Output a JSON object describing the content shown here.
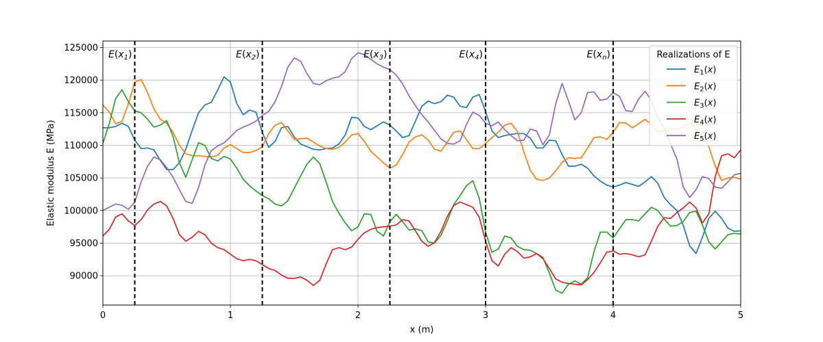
{
  "chart_data": {
    "type": "line",
    "xlabel": "x (m)",
    "ylabel": "Elastic modulus E (MPa)",
    "xlim": [
      0,
      5
    ],
    "ylim": [
      85500,
      126000
    ],
    "xticks": [
      0,
      1,
      2,
      3,
      4,
      5
    ],
    "yticks": [
      90000,
      95000,
      100000,
      105000,
      110000,
      115000,
      120000,
      125000
    ],
    "grid": true,
    "legend": {
      "title": "Realizations of E",
      "placement": "top-right"
    },
    "vlines": [
      {
        "x": 0.25,
        "label": "E(x1)"
      },
      {
        "x": 1.25,
        "label": "E(x2)"
      },
      {
        "x": 2.25,
        "label": "E(x3)"
      },
      {
        "x": 3.0,
        "label": "E(x4)"
      },
      {
        "x": 4.0,
        "label": "E(xn)"
      }
    ],
    "x": [
      0,
      0.05,
      0.1,
      0.15,
      0.2,
      0.25,
      0.3,
      0.35,
      0.4,
      0.45,
      0.5,
      0.55,
      0.6,
      0.65,
      0.7,
      0.75,
      0.8,
      0.85,
      0.9,
      0.95,
      1.0,
      1.05,
      1.1,
      1.15,
      1.2,
      1.25,
      1.3,
      1.35,
      1.4,
      1.45,
      1.5,
      1.55,
      1.6,
      1.65,
      1.7,
      1.75,
      1.8,
      1.85,
      1.9,
      1.95,
      2.0,
      2.05,
      2.1,
      2.15,
      2.2,
      2.25,
      2.3,
      2.35,
      2.4,
      2.45,
      2.5,
      2.55,
      2.6,
      2.65,
      2.7,
      2.75,
      2.8,
      2.85,
      2.9,
      2.95,
      3.0,
      3.05,
      3.1,
      3.15,
      3.2,
      3.25,
      3.3,
      3.35,
      3.4,
      3.45,
      3.5,
      3.55,
      3.6,
      3.65,
      3.7,
      3.75,
      3.8,
      3.85,
      3.9,
      3.95,
      4.0,
      4.05,
      4.1,
      4.15,
      4.2,
      4.25,
      4.3,
      4.35,
      4.4,
      4.45,
      4.5,
      4.55,
      4.6,
      4.65,
      4.7,
      4.75,
      4.8,
      4.85,
      4.9,
      4.95,
      5.0
    ],
    "series": [
      {
        "name": "E1(x)",
        "color": "#1f77b4",
        "values": [
          112700,
          112700,
          112900,
          113400,
          112900,
          110800,
          109500,
          109600,
          109300,
          107700,
          106300,
          106300,
          107300,
          109400,
          112300,
          115000,
          116200,
          116600,
          118500,
          120500,
          119700,
          116400,
          114700,
          115400,
          115100,
          112000,
          109700,
          110600,
          112700,
          112900,
          111300,
          110200,
          109800,
          109400,
          109300,
          109500,
          109600,
          110200,
          111600,
          114300,
          114200,
          112900,
          112400,
          113000,
          113600,
          113100,
          112200,
          111200,
          111500,
          113700,
          116000,
          116800,
          116400,
          116700,
          117700,
          117400,
          116000,
          115800,
          117400,
          117800,
          115200,
          112200,
          111200,
          111500,
          111700,
          111800,
          111800,
          111100,
          109600,
          109600,
          110800,
          110700,
          108600,
          106800,
          106800,
          107100,
          106500,
          105300,
          104500,
          103900,
          103600,
          103900,
          104300,
          104000,
          103700,
          104400,
          105200,
          104200,
          102000,
          100900,
          100000,
          97700,
          94600,
          93400,
          95900,
          98800,
          99900,
          98800,
          97300,
          96800,
          96900
        ]
      },
      {
        "name": "E2(x)",
        "color": "#ff7f0e",
        "values": [
          116200,
          115100,
          113300,
          113700,
          116400,
          119700,
          120100,
          118100,
          115600,
          114000,
          113400,
          112000,
          110000,
          108700,
          108400,
          108400,
          108300,
          108200,
          108500,
          109600,
          110100,
          109500,
          108900,
          108900,
          109200,
          109800,
          111800,
          113100,
          113500,
          112200,
          110900,
          111000,
          111100,
          110500,
          109900,
          109500,
          109400,
          109700,
          110500,
          111600,
          111800,
          110600,
          109100,
          108200,
          107300,
          106500,
          107000,
          108600,
          110500,
          111300,
          111600,
          110800,
          109400,
          109100,
          110500,
          112000,
          112200,
          110900,
          109500,
          109500,
          110300,
          111200,
          112000,
          113100,
          113400,
          112100,
          109000,
          106200,
          104800,
          104600,
          105000,
          106100,
          107400,
          108100,
          108000,
          108100,
          109600,
          111200,
          111300,
          110900,
          112000,
          113500,
          113400,
          112700,
          113300,
          114000,
          113200,
          112100,
          112200,
          112600,
          112400,
          112800,
          113500,
          112700,
          111100,
          109800,
          106800,
          104600,
          105000,
          105100,
          104800
        ]
      },
      {
        "name": "E3(x)",
        "color": "#2ca02c",
        "values": [
          110300,
          113300,
          117200,
          118500,
          116700,
          115300,
          115000,
          114000,
          112800,
          113100,
          113800,
          111400,
          107300,
          105100,
          107800,
          110400,
          110000,
          108000,
          107600,
          108300,
          107900,
          106500,
          104800,
          103800,
          103000,
          102300,
          101800,
          101000,
          100700,
          101500,
          103400,
          105300,
          107100,
          108200,
          107200,
          104400,
          101400,
          99600,
          98100,
          96900,
          97500,
          99500,
          99400,
          96800,
          96100,
          98300,
          99400,
          98300,
          97000,
          97200,
          96900,
          95200,
          95000,
          96200,
          98400,
          100900,
          102300,
          103800,
          104600,
          101900,
          96700,
          93600,
          94100,
          96100,
          95800,
          94500,
          94000,
          93900,
          93400,
          92800,
          90400,
          87800,
          87300,
          88700,
          89200,
          88700,
          89700,
          93700,
          96700,
          96700,
          95800,
          97200,
          98600,
          98600,
          98400,
          99500,
          100500,
          100000,
          98700,
          97600,
          97700,
          98300,
          99700,
          99900,
          97800,
          95200,
          94100,
          95200,
          96300,
          96500,
          96400
        ]
      },
      {
        "name": "E4(x)",
        "color": "#d62728",
        "values": [
          96100,
          97100,
          99000,
          99500,
          98400,
          97700,
          98600,
          100100,
          101000,
          101400,
          100700,
          98800,
          96300,
          95300,
          95900,
          96800,
          96300,
          95000,
          94300,
          94000,
          93300,
          92600,
          92300,
          92500,
          92300,
          91700,
          91100,
          90800,
          90100,
          89600,
          89600,
          89800,
          89300,
          88500,
          89300,
          91800,
          94000,
          94300,
          94000,
          94400,
          95600,
          96600,
          97100,
          97400,
          97500,
          97600,
          97800,
          98600,
          98400,
          96900,
          95300,
          94500,
          95100,
          96800,
          99100,
          100800,
          101300,
          100900,
          100500,
          99000,
          95300,
          92300,
          91500,
          93300,
          94300,
          93700,
          92700,
          92900,
          93400,
          92600,
          91100,
          89500,
          89000,
          88800,
          88700,
          88600,
          89400,
          90500,
          92000,
          93600,
          93800,
          93300,
          93400,
          93200,
          92900,
          93200,
          95300,
          97600,
          98900,
          98800,
          99700,
          100400,
          101300,
          100400,
          98100,
          99500,
          105200,
          108400,
          108700,
          108100,
          109300
        ]
      },
      {
        "name": "E5(x)",
        "color": "#9467bd",
        "values": [
          100000,
          100500,
          101000,
          100800,
          100200,
          101300,
          104400,
          106800,
          108200,
          107800,
          106600,
          105100,
          103200,
          101400,
          101100,
          103500,
          107000,
          109200,
          109900,
          110400,
          111300,
          112300,
          112800,
          113200,
          113700,
          114600,
          115200,
          116700,
          119000,
          122000,
          123400,
          122900,
          121000,
          119500,
          119300,
          119900,
          120300,
          120500,
          121300,
          123300,
          124200,
          123900,
          123200,
          122500,
          122000,
          121600,
          120800,
          119400,
          117600,
          116100,
          114700,
          113600,
          112300,
          111000,
          110300,
          110200,
          110700,
          113200,
          115100,
          114600,
          113400,
          113000,
          113600,
          112400,
          111500,
          110700,
          110800,
          112500,
          112200,
          110100,
          111600,
          116400,
          119500,
          116800,
          113900,
          115000,
          118100,
          118200,
          116900,
          117100,
          118100,
          117500,
          115300,
          115200,
          117100,
          118300,
          116900,
          114200,
          112700,
          110200,
          107900,
          103600,
          102000,
          103200,
          105200,
          104900,
          103600,
          103400,
          104400,
          105500,
          105700
        ]
      }
    ]
  }
}
